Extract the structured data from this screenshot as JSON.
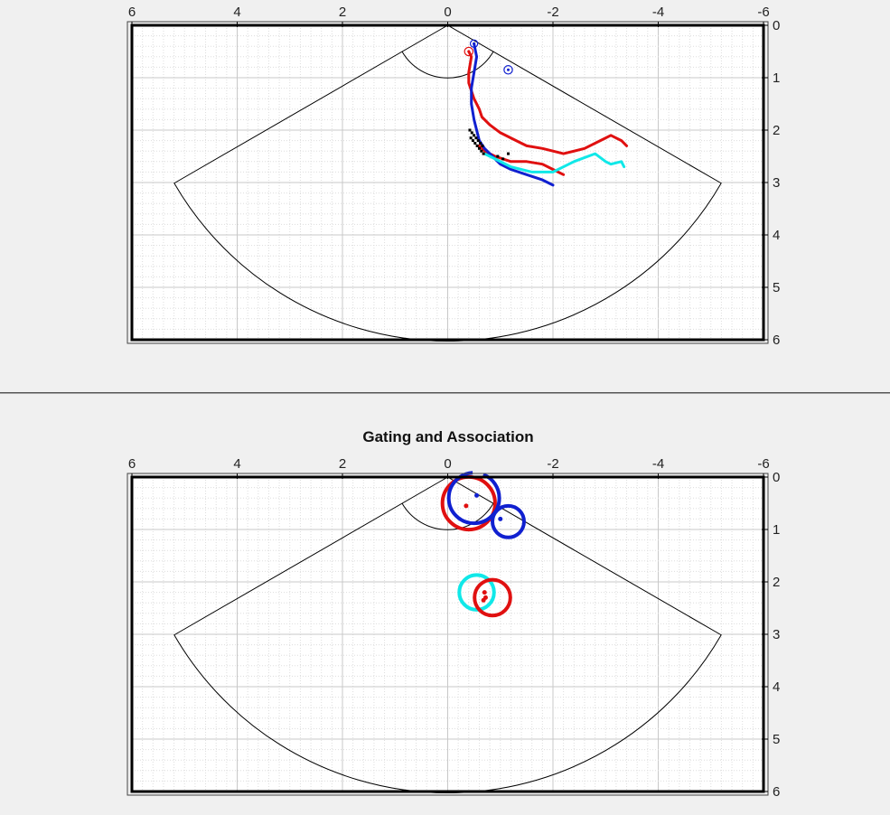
{
  "colors": {
    "background": "#f0f0f0",
    "track_red": "#e01010",
    "track_blue": "#1020d0",
    "track_cyan": "#10e8e8",
    "detections": "#000000",
    "grid": "#cccccc",
    "frame": "#000000"
  },
  "chart_data": [
    {
      "type": "scatter",
      "title": "",
      "xlabel": "",
      "ylabel": "",
      "xlim": [
        6,
        -6
      ],
      "ylim": [
        6,
        0
      ],
      "xticks": [
        "6",
        "4",
        "2",
        "0",
        "-2",
        "-4",
        "-6"
      ],
      "yticks": [
        "0",
        "1",
        "2",
        "3",
        "4",
        "5",
        "6"
      ],
      "x_axis_location": "top",
      "y_axis_location": "right",
      "grid": "dotted minor + major",
      "sensor_fov": {
        "apex": [
          0,
          0
        ],
        "inner_radius": 1,
        "outer_radius": 6,
        "half_angle_deg": 60
      },
      "series": [
        {
          "color": "red",
          "x": [
            -0.4,
            -0.45,
            -0.4,
            -0.4,
            -0.5,
            -0.6,
            -0.65,
            -0.8,
            -1.0,
            -1.3,
            -1.5,
            -1.8,
            -2.2,
            -2.6,
            -2.9,
            -3.1,
            -3.3,
            -3.4
          ],
          "y": [
            0.5,
            0.6,
            0.9,
            1.1,
            1.4,
            1.6,
            1.75,
            1.9,
            2.05,
            2.2,
            2.3,
            2.35,
            2.45,
            2.35,
            2.2,
            2.1,
            2.2,
            2.3
          ]
        },
        {
          "color": "red",
          "x": [
            -0.6,
            -0.7,
            -0.9,
            -1.2,
            -1.5,
            -1.8,
            -2.0,
            -2.2
          ],
          "y": [
            2.3,
            2.4,
            2.5,
            2.6,
            2.6,
            2.65,
            2.75,
            2.85
          ]
        },
        {
          "color": "blue",
          "x": [
            -0.5,
            -0.55,
            -0.5,
            -0.45,
            -0.45,
            -0.5,
            -0.55,
            -0.6,
            -0.7,
            -0.85,
            -1.0,
            -1.2,
            -1.5,
            -1.8,
            -2.0
          ],
          "y": [
            0.35,
            0.6,
            0.9,
            1.2,
            1.5,
            1.8,
            2.0,
            2.2,
            2.35,
            2.5,
            2.65,
            2.75,
            2.85,
            2.95,
            3.05
          ]
        },
        {
          "color": "cyan",
          "x": [
            -0.7,
            -0.9,
            -1.2,
            -1.6,
            -2.0,
            -2.4,
            -2.8,
            -3.0,
            -3.1,
            -3.3,
            -3.35
          ],
          "y": [
            2.45,
            2.55,
            2.7,
            2.8,
            2.8,
            2.6,
            2.45,
            2.6,
            2.65,
            2.6,
            2.7
          ]
        },
        {
          "color": "black",
          "mode": "markers",
          "x": [
            -0.42,
            -0.46,
            -0.5,
            -0.54,
            -0.58,
            -0.62,
            -0.66,
            -0.44,
            -0.48,
            -0.52,
            -0.56,
            -0.6,
            -0.64,
            -0.68,
            -0.95,
            -1.05,
            -1.15
          ],
          "y": [
            2.0,
            2.05,
            2.1,
            2.15,
            2.2,
            2.25,
            2.3,
            2.15,
            2.2,
            2.25,
            2.3,
            2.35,
            2.4,
            2.45,
            2.5,
            2.55,
            2.45
          ]
        }
      ],
      "markers": [
        {
          "color": "red",
          "x": -0.4,
          "y": 0.5,
          "r": 0.08
        },
        {
          "color": "blue",
          "x": -0.5,
          "y": 0.35,
          "r": 0.07
        },
        {
          "color": "blue",
          "x": -1.15,
          "y": 0.85,
          "r": 0.08
        }
      ]
    },
    {
      "type": "scatter",
      "title": "Gating and Association",
      "xlabel": "",
      "ylabel": "",
      "xlim": [
        6,
        -6
      ],
      "ylim": [
        6,
        0
      ],
      "xticks": [
        "6",
        "4",
        "2",
        "0",
        "-2",
        "-4",
        "-6"
      ],
      "yticks": [
        "0",
        "1",
        "2",
        "3",
        "4",
        "5",
        "6"
      ],
      "x_axis_location": "top",
      "y_axis_location": "right",
      "grid": "dotted minor + major",
      "sensor_fov": {
        "apex": [
          0,
          0
        ],
        "inner_radius": 1,
        "outer_radius": 6,
        "half_angle_deg": 60
      },
      "gates": [
        {
          "color": "red",
          "x": -0.4,
          "y": 0.5,
          "r": 0.5
        },
        {
          "color": "blue",
          "x": -0.5,
          "y": 0.4,
          "r": 0.48,
          "partial": true
        },
        {
          "color": "blue",
          "x": -1.15,
          "y": 0.85,
          "r": 0.3
        },
        {
          "color": "cyan",
          "x": -0.55,
          "y": 2.2,
          "r": 0.33
        },
        {
          "color": "red",
          "x": -0.85,
          "y": 2.3,
          "r": 0.34
        }
      ],
      "detections": [
        {
          "color": "red",
          "x": -0.35,
          "y": 0.55
        },
        {
          "color": "blue",
          "x": -0.55,
          "y": 0.35
        },
        {
          "color": "blue",
          "x": -1.0,
          "y": 0.8
        },
        {
          "color": "red",
          "x": -0.7,
          "y": 2.2
        },
        {
          "color": "red",
          "x": -0.72,
          "y": 2.3
        },
        {
          "color": "red",
          "x": -0.68,
          "y": 2.35
        }
      ]
    }
  ]
}
